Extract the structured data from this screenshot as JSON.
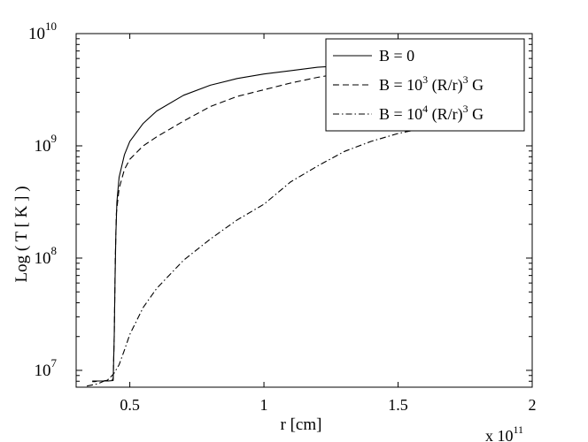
{
  "chart_data": {
    "type": "line",
    "xlabel": "r [cm]",
    "ylabel": "Log ( T [ K ] )",
    "x_scale_note": {
      "base": "x 10",
      "exp": "11"
    },
    "xlim": [
      0.3,
      2.0
    ],
    "ylim_log10": [
      6.85,
      10.0
    ],
    "y_scale": "log",
    "x_ticks": [
      0.5,
      1.0,
      1.5,
      2.0
    ],
    "x_tick_labels": [
      "0.5",
      "1",
      "1.5",
      "2"
    ],
    "y_ticks": [
      {
        "exp": 7,
        "base": "10",
        "sup": "7"
      },
      {
        "exp": 8,
        "base": "10",
        "sup": "8"
      },
      {
        "exp": 9,
        "base": "10",
        "sup": "9"
      },
      {
        "exp": 10,
        "base": "10",
        "sup": "10"
      }
    ],
    "grid": false,
    "legend_position": "top-right",
    "series": [
      {
        "name": "B = 0",
        "legend": {
          "pre": "B = 0",
          "sup1": "",
          "mid": "",
          "sup2": "",
          "post": ""
        },
        "style": "solid",
        "points": [
          [
            0.36,
            6.9
          ],
          [
            0.37,
            6.9
          ],
          [
            0.38,
            6.905
          ],
          [
            0.4,
            6.905
          ],
          [
            0.42,
            6.905
          ],
          [
            0.438,
            6.91
          ],
          [
            0.442,
            7.3
          ],
          [
            0.445,
            7.8
          ],
          [
            0.448,
            8.2
          ],
          [
            0.452,
            8.5
          ],
          [
            0.46,
            8.72
          ],
          [
            0.48,
            8.92
          ],
          [
            0.5,
            9.04
          ],
          [
            0.55,
            9.2
          ],
          [
            0.6,
            9.31
          ],
          [
            0.7,
            9.45
          ],
          [
            0.8,
            9.54
          ],
          [
            0.9,
            9.6
          ],
          [
            1.0,
            9.64
          ],
          [
            1.1,
            9.67
          ],
          [
            1.2,
            9.7
          ],
          [
            1.3,
            9.715
          ]
        ]
      },
      {
        "name": "B = 10^3 (R/r)^3 G",
        "legend": {
          "pre": "B = 10",
          "sup1": "3",
          "mid": " (R/r)",
          "sup2": "3",
          "post": " G"
        },
        "style": "dashed",
        "points": [
          [
            0.36,
            6.905
          ],
          [
            0.4,
            6.905
          ],
          [
            0.438,
            6.92
          ],
          [
            0.442,
            7.3
          ],
          [
            0.446,
            8.0
          ],
          [
            0.45,
            8.4
          ],
          [
            0.46,
            8.62
          ],
          [
            0.48,
            8.79
          ],
          [
            0.5,
            8.88
          ],
          [
            0.55,
            9.0
          ],
          [
            0.6,
            9.08
          ],
          [
            0.7,
            9.22
          ],
          [
            0.8,
            9.35
          ],
          [
            0.9,
            9.44
          ],
          [
            1.0,
            9.5
          ],
          [
            1.1,
            9.56
          ],
          [
            1.2,
            9.61
          ],
          [
            1.3,
            9.65
          ],
          [
            1.38,
            9.665
          ]
        ]
      },
      {
        "name": "B = 10^4 (R/r)^3 G",
        "legend": {
          "pre": "B = 10",
          "sup1": "4",
          "mid": " (R/r)",
          "sup2": "3",
          "post": " G"
        },
        "style": "dashdot",
        "points": [
          [
            0.34,
            6.86
          ],
          [
            0.38,
            6.88
          ],
          [
            0.42,
            6.92
          ],
          [
            0.44,
            6.97
          ],
          [
            0.46,
            7.05
          ],
          [
            0.48,
            7.18
          ],
          [
            0.5,
            7.32
          ],
          [
            0.55,
            7.56
          ],
          [
            0.6,
            7.73
          ],
          [
            0.7,
            7.98
          ],
          [
            0.8,
            8.17
          ],
          [
            0.9,
            8.34
          ],
          [
            1.0,
            8.48
          ],
          [
            1.1,
            8.68
          ],
          [
            1.2,
            8.82
          ],
          [
            1.3,
            8.95
          ],
          [
            1.4,
            9.04
          ],
          [
            1.5,
            9.11
          ],
          [
            1.6,
            9.16
          ]
        ]
      }
    ]
  }
}
